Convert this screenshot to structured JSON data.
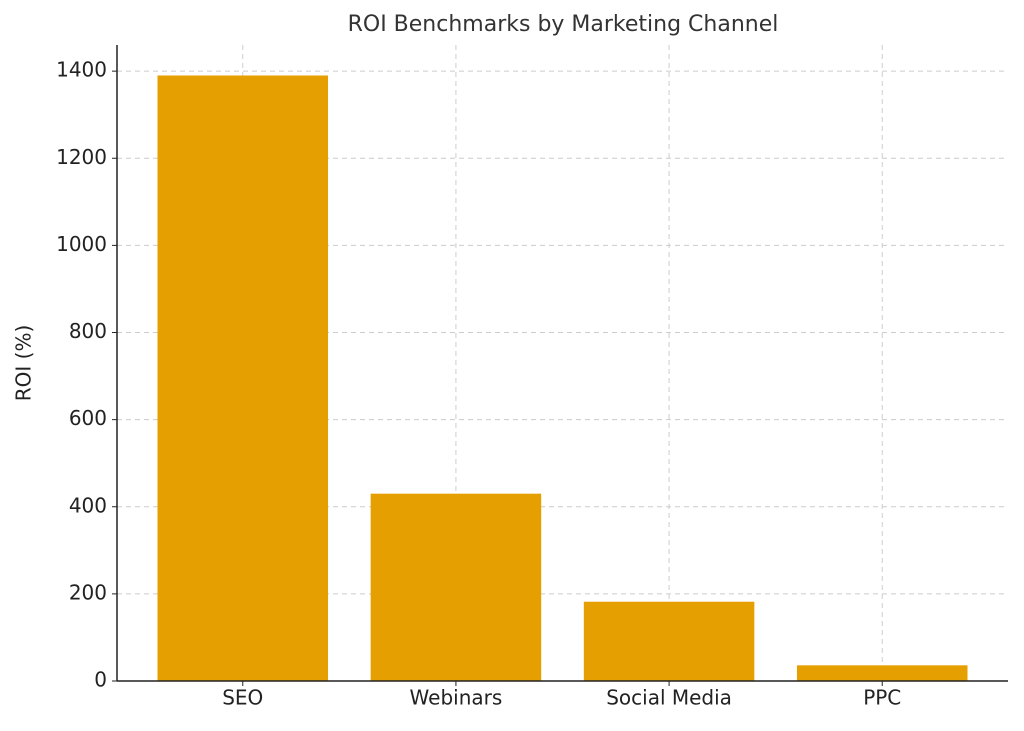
{
  "chart_data": {
    "type": "bar",
    "title": "ROI Benchmarks by Marketing Channel",
    "y_label": "ROI (%)",
    "categories": [
      "SEO",
      "Webinars",
      "Social Media",
      "PPC"
    ],
    "values": [
      1390,
      430,
      182,
      36
    ],
    "color": "#e69f00",
    "ylim": [
      0,
      1460
    ],
    "yticks": [
      0,
      200,
      400,
      600,
      800,
      1000,
      1200,
      1400
    ],
    "grid": true
  }
}
